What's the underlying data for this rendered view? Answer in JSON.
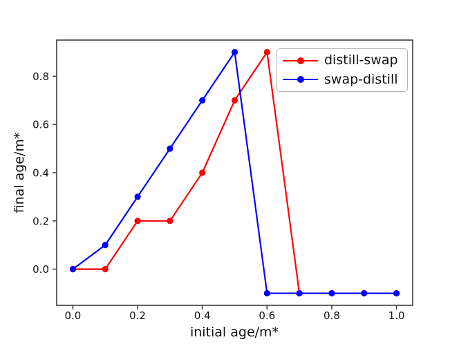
{
  "chart_data": {
    "type": "line",
    "title": "",
    "xlabel": "initial age/m*",
    "ylabel": "final age/m*",
    "x": [
      0.0,
      0.1,
      0.2,
      0.3,
      0.4,
      0.5,
      0.6,
      0.7,
      0.8,
      0.9,
      1.0
    ],
    "series": [
      {
        "name": "distill-swap",
        "color": "#ff0000",
        "marker": "circle",
        "values": [
          0.0,
          0.0,
          0.2,
          0.2,
          0.4,
          0.7,
          0.9,
          -0.1,
          -0.1,
          -0.1,
          -0.1
        ]
      },
      {
        "name": "swap-distill",
        "color": "#0000ff",
        "marker": "circle",
        "values": [
          0.0,
          0.1,
          0.3,
          0.5,
          0.7,
          0.9,
          -0.1,
          -0.1,
          -0.1,
          -0.1,
          -0.1
        ]
      }
    ],
    "xticks": [
      0.0,
      0.2,
      0.4,
      0.6,
      0.8,
      1.0
    ],
    "yticks": [
      0.0,
      0.2,
      0.4,
      0.6,
      0.8
    ],
    "xlim": [
      -0.05,
      1.05
    ],
    "ylim": [
      -0.15,
      0.95
    ],
    "grid": false,
    "legend_position": "upper right",
    "axes_style": {
      "spine_color": "#3d3d3d",
      "tick_color": "#3d3d3d",
      "text_color": "#111111"
    }
  }
}
